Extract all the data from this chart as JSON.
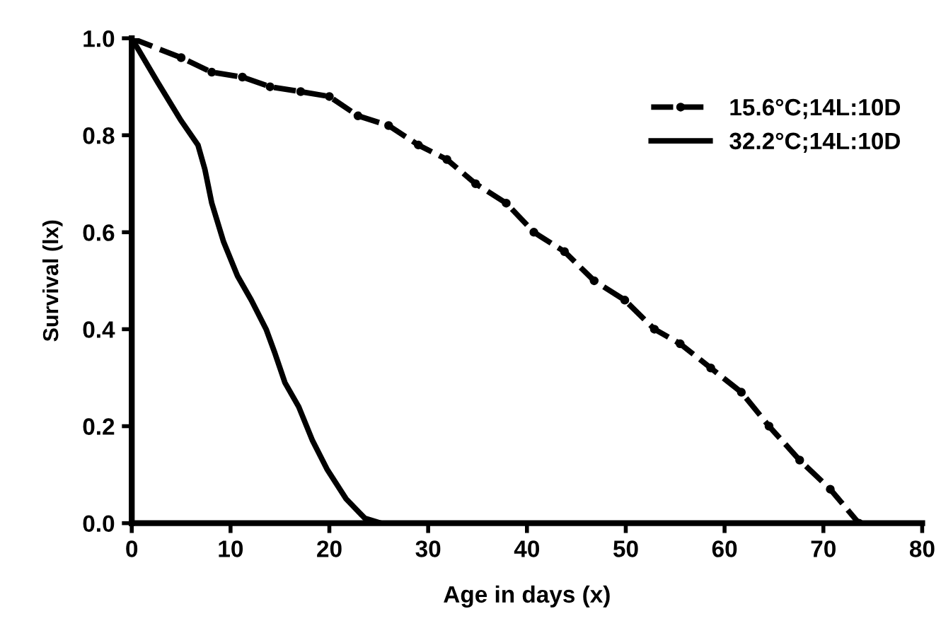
{
  "chart_data": {
    "type": "line",
    "xlabel": "Age in days (x)",
    "ylabel": "Survival (lx)",
    "xlim": [
      0,
      80
    ],
    "xticks": [
      0,
      10,
      20,
      30,
      40,
      50,
      60,
      70,
      80
    ],
    "ylim": [
      0,
      1
    ],
    "yticks": [
      {
        "value": 0,
        "label": "0.0"
      },
      {
        "value": 0.2,
        "label": "0.2"
      },
      {
        "value": 0.4,
        "label": "0.4"
      },
      {
        "value": 0.6,
        "label": "0.6"
      },
      {
        "value": 0.8,
        "label": "0.8"
      },
      {
        "value": 1,
        "label": "1.0"
      }
    ],
    "grid": false,
    "legend": "top right",
    "series": [
      {
        "name": "15.6°C;14L:10D",
        "color": "#000000",
        "line_style": "dashed",
        "marker": "circle",
        "x": [
          0,
          5,
          8.1,
          11.2,
          14,
          17.1,
          20,
          22.9,
          26,
          29,
          31.9,
          34.8,
          37.9,
          40.7,
          43.8,
          46.8,
          49.9,
          52.9,
          55.5,
          58.6,
          61.7,
          64.5,
          67.6,
          70.7,
          73.6
        ],
        "values": [
          1.0,
          0.96,
          0.93,
          0.92,
          0.9,
          0.89,
          0.88,
          0.84,
          0.82,
          0.78,
          0.75,
          0.7,
          0.66,
          0.6,
          0.56,
          0.5,
          0.46,
          0.4,
          0.37,
          0.32,
          0.27,
          0.2,
          0.13,
          0.07,
          0.0
        ]
      },
      {
        "name": "32.2°C;14L:10D",
        "color": "#000000",
        "line_style": "solid",
        "marker": "none",
        "x": [
          0,
          2.6,
          5,
          6.7,
          7.4,
          8.1,
          9.3,
          10.7,
          12.1,
          13.6,
          14.5,
          15.5,
          16.9,
          18.3,
          19.8,
          21.7,
          23.6,
          25.2
        ],
        "values": [
          1.0,
          0.91,
          0.83,
          0.78,
          0.73,
          0.66,
          0.58,
          0.51,
          0.46,
          0.4,
          0.35,
          0.29,
          0.24,
          0.17,
          0.11,
          0.05,
          0.01,
          0.0
        ]
      }
    ]
  }
}
